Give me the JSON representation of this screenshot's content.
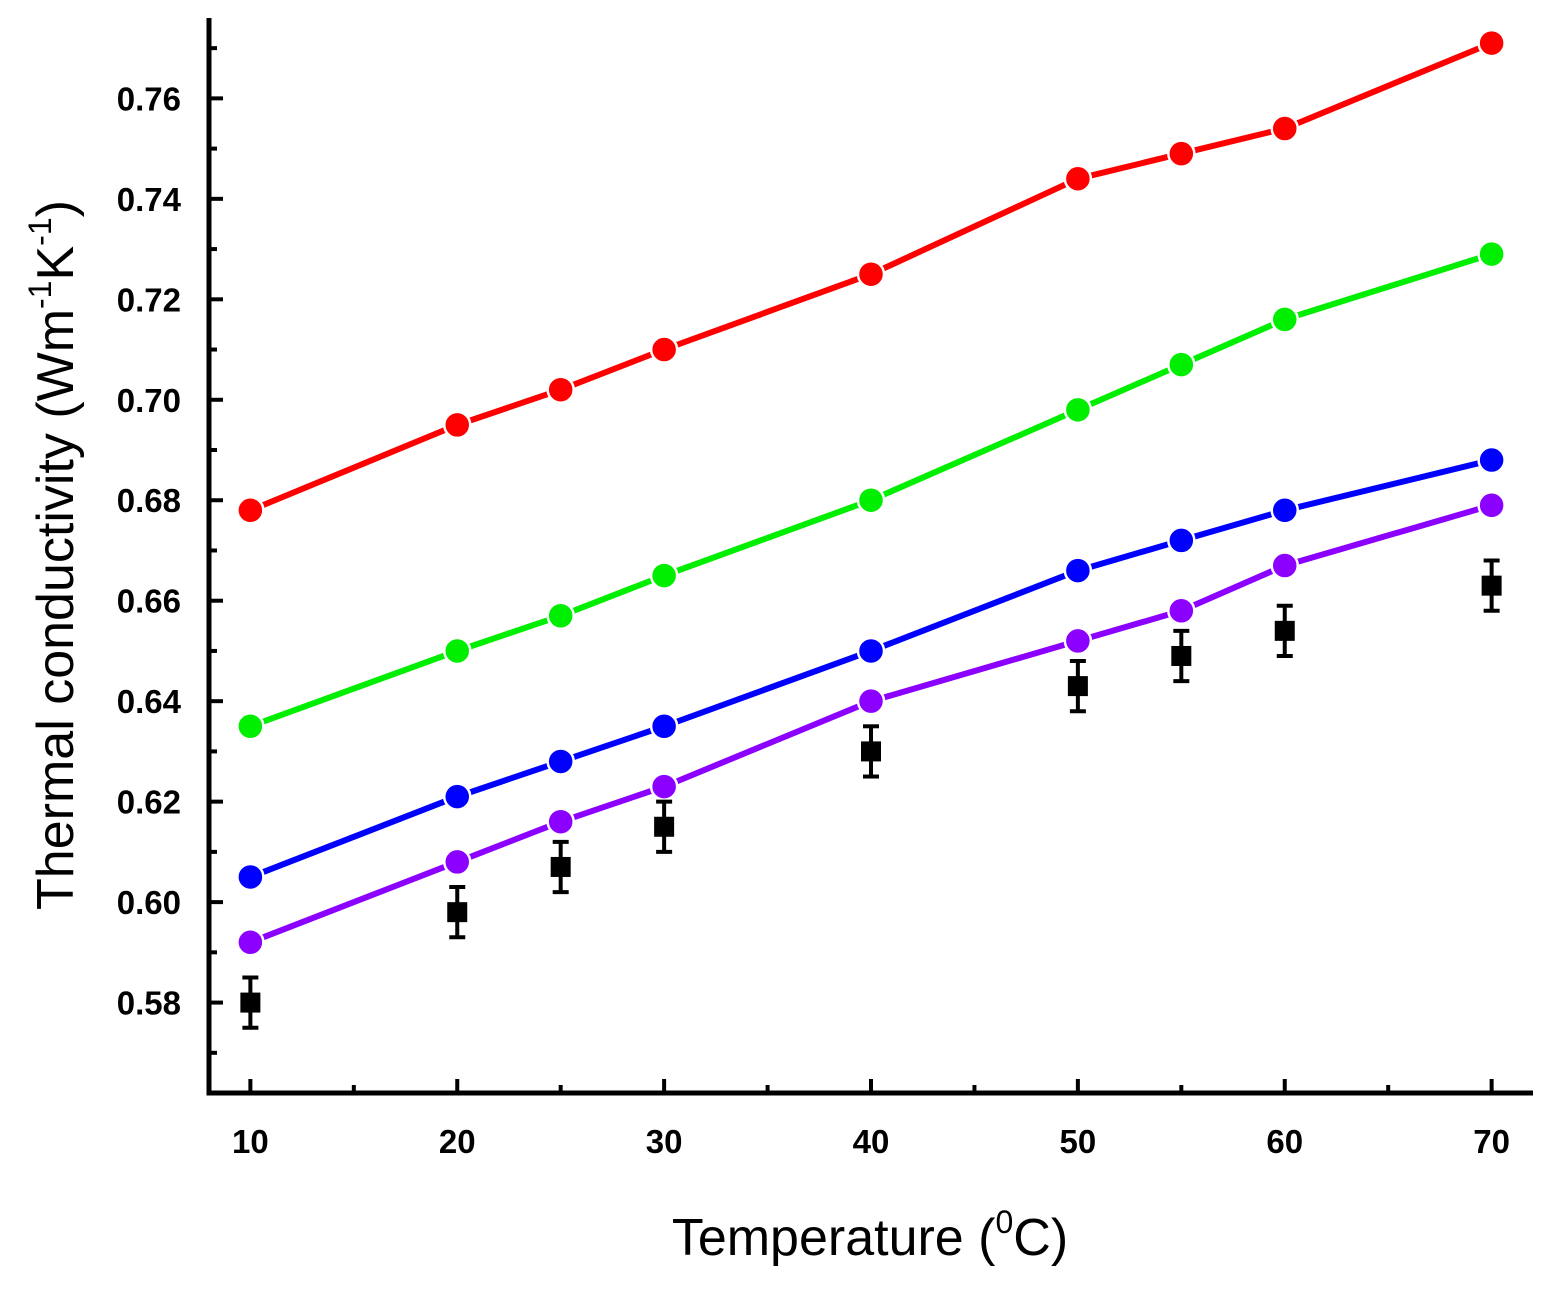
{
  "chart_data": {
    "type": "line",
    "title": "",
    "xlabel": {
      "main": "Temperature (",
      "sup": "0",
      "tail": "C)"
    },
    "ylabel": {
      "p1": "Thermal conductivity (Wm",
      "sup1": "-1",
      "p2": "K",
      "sup2": "-1",
      "p3": ")"
    },
    "xlim": [
      8,
      72
    ],
    "ylim": [
      0.562,
      0.776
    ],
    "x_ticks": [
      10,
      20,
      30,
      40,
      50,
      60,
      70
    ],
    "x_tick_labels": [
      "10",
      "20",
      "30",
      "40",
      "50",
      "60",
      "70"
    ],
    "x_minor_ticks": [
      15,
      25,
      35,
      45,
      55,
      65
    ],
    "y_ticks": [
      0.58,
      0.6,
      0.62,
      0.64,
      0.66,
      0.68,
      0.7,
      0.72,
      0.74,
      0.76
    ],
    "y_tick_labels": [
      "0.58",
      "0.60",
      "0.62",
      "0.64",
      "0.66",
      "0.68",
      "0.70",
      "0.72",
      "0.74",
      "0.76"
    ],
    "y_minor_ticks": [
      0.57,
      0.59,
      0.61,
      0.63,
      0.65,
      0.67,
      0.69,
      0.71,
      0.73,
      0.75,
      0.77
    ],
    "grid": false,
    "x": [
      10,
      20,
      25,
      30,
      40,
      50,
      55,
      60,
      70
    ],
    "series": [
      {
        "name": "red",
        "color": "#ff0000",
        "marker": "circle",
        "line": true,
        "values": [
          0.678,
          0.695,
          0.702,
          0.71,
          0.725,
          0.744,
          0.749,
          0.754,
          0.771
        ]
      },
      {
        "name": "green",
        "color": "#00ee00",
        "marker": "circle",
        "line": true,
        "values": [
          0.635,
          0.65,
          0.657,
          0.665,
          0.68,
          0.698,
          0.707,
          0.716,
          0.729
        ]
      },
      {
        "name": "blue",
        "color": "#0000ff",
        "marker": "circle",
        "line": true,
        "values": [
          0.605,
          0.621,
          0.628,
          0.635,
          0.65,
          0.666,
          0.672,
          0.678,
          0.688
        ]
      },
      {
        "name": "purple",
        "color": "#8b00ff",
        "marker": "circle",
        "line": true,
        "values": [
          0.592,
          0.608,
          0.616,
          0.623,
          0.64,
          0.652,
          0.658,
          0.667,
          0.679
        ]
      },
      {
        "name": "experimental",
        "color": "#000000",
        "marker": "square",
        "line": false,
        "values": [
          0.58,
          0.598,
          0.607,
          0.615,
          0.63,
          0.643,
          0.649,
          0.654,
          0.663
        ],
        "error": 0.005
      }
    ]
  }
}
